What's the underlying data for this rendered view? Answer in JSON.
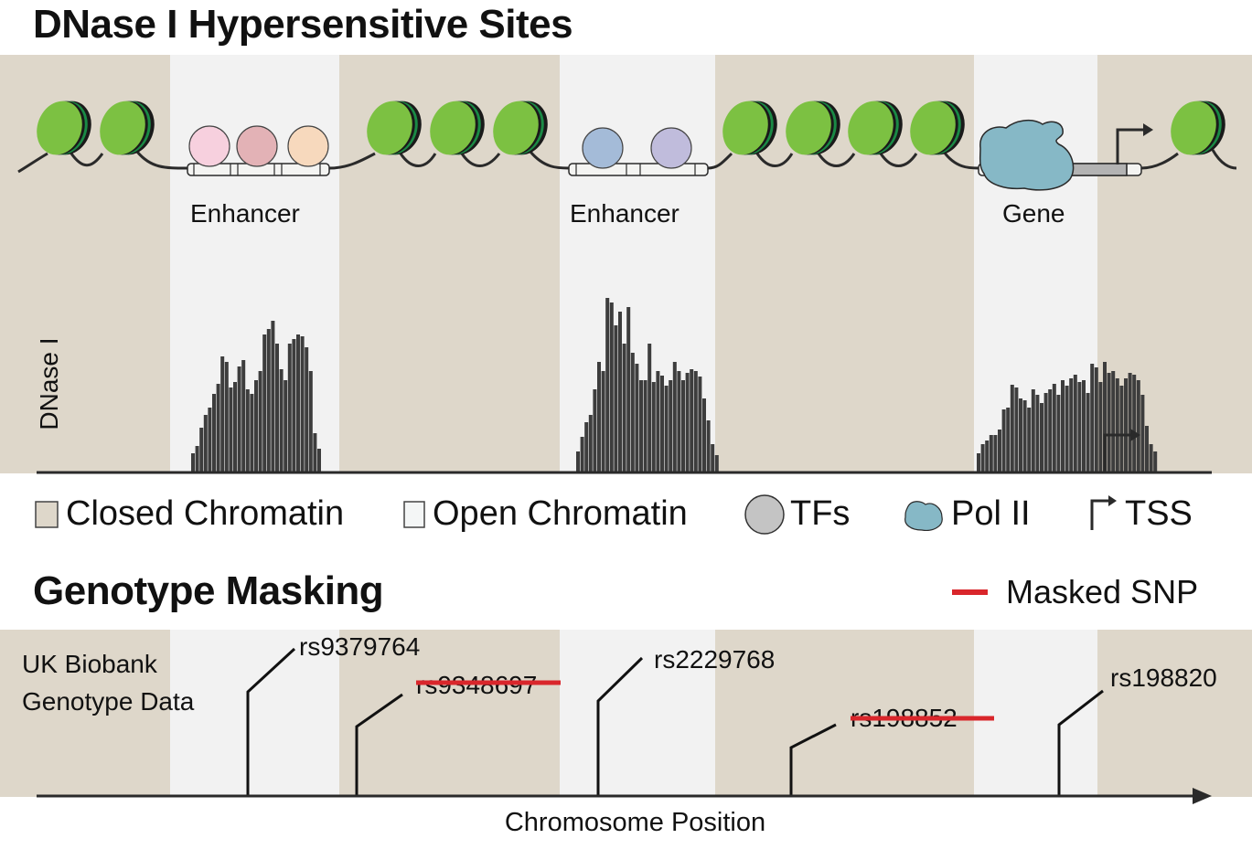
{
  "colors": {
    "closed": "#ded7ca",
    "open": "#f2f2f2",
    "nucleosome_light": "#7cc142",
    "nucleosome_dark": "#1a8a45",
    "bar": "#3d3d3d",
    "polii": "#86b8c6",
    "mask": "#d9262b"
  },
  "top": {
    "title": "DNase I Hypersensitive Sites",
    "region_labels": [
      "Enhancer",
      "Enhancer",
      "Gene"
    ],
    "track_label": "DNase I"
  },
  "legend": {
    "closed": "Closed Chromatin",
    "open": "Open Chromatin",
    "tfs": "TFs",
    "polii": "Pol II",
    "tss": "TSS"
  },
  "bottom": {
    "title": "Genotype Masking",
    "masked_legend": "Masked SNP",
    "track_label_line1": "UK Biobank",
    "track_label_line2": "Genotype Data",
    "axis_label": "Chromosome Position",
    "snps": [
      {
        "id": "rs9379764",
        "masked": false
      },
      {
        "id": "rs9348697",
        "masked": true
      },
      {
        "id": "rs2229768",
        "masked": false
      },
      {
        "id": "rs198852",
        "masked": true
      },
      {
        "id": "rs198820",
        "masked": false
      }
    ]
  },
  "icons": [
    "nucleosome-icon",
    "tf-icon",
    "pol-ii-icon",
    "tss-arrow-icon"
  ]
}
